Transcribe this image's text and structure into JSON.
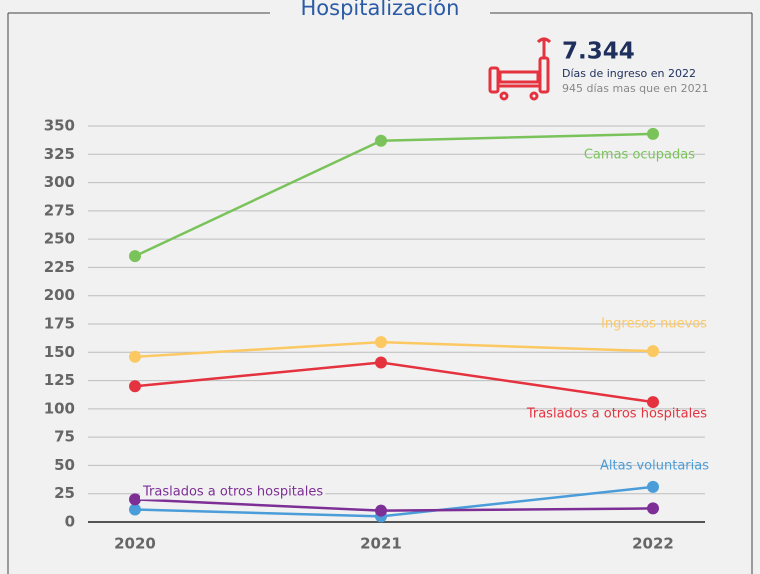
{
  "chart_data": {
    "type": "line",
    "title": "Hospitalización",
    "annotation": {
      "value": "7.344",
      "label": "Días de ingreso en 2022",
      "note": "945 días mas que en 2021"
    },
    "categories": [
      "2020",
      "2021",
      "2022"
    ],
    "series": [
      {
        "name": "Camas ocupadas",
        "color": "#7ac35b",
        "values": [
          235,
          337,
          343
        ]
      },
      {
        "name": "Ingresos nuevos",
        "color": "#fcc862",
        "values": [
          146,
          159,
          151
        ]
      },
      {
        "name": "Traslados a otros hospitales",
        "color": "#e5323f",
        "values": [
          120,
          141,
          106
        ]
      },
      {
        "name": "Altas voluntarias",
        "color": "#4a9dd9",
        "values": [
          11,
          5,
          31
        ]
      },
      {
        "name": "Traslados a otros hospitales",
        "color": "#7d2f96",
        "values": [
          20,
          10,
          12
        ]
      }
    ],
    "ylim": [
      0,
      350
    ],
    "yticks": [
      0,
      25,
      50,
      75,
      100,
      125,
      150,
      175,
      200,
      225,
      250,
      275,
      300,
      325,
      350
    ],
    "grid": true
  }
}
